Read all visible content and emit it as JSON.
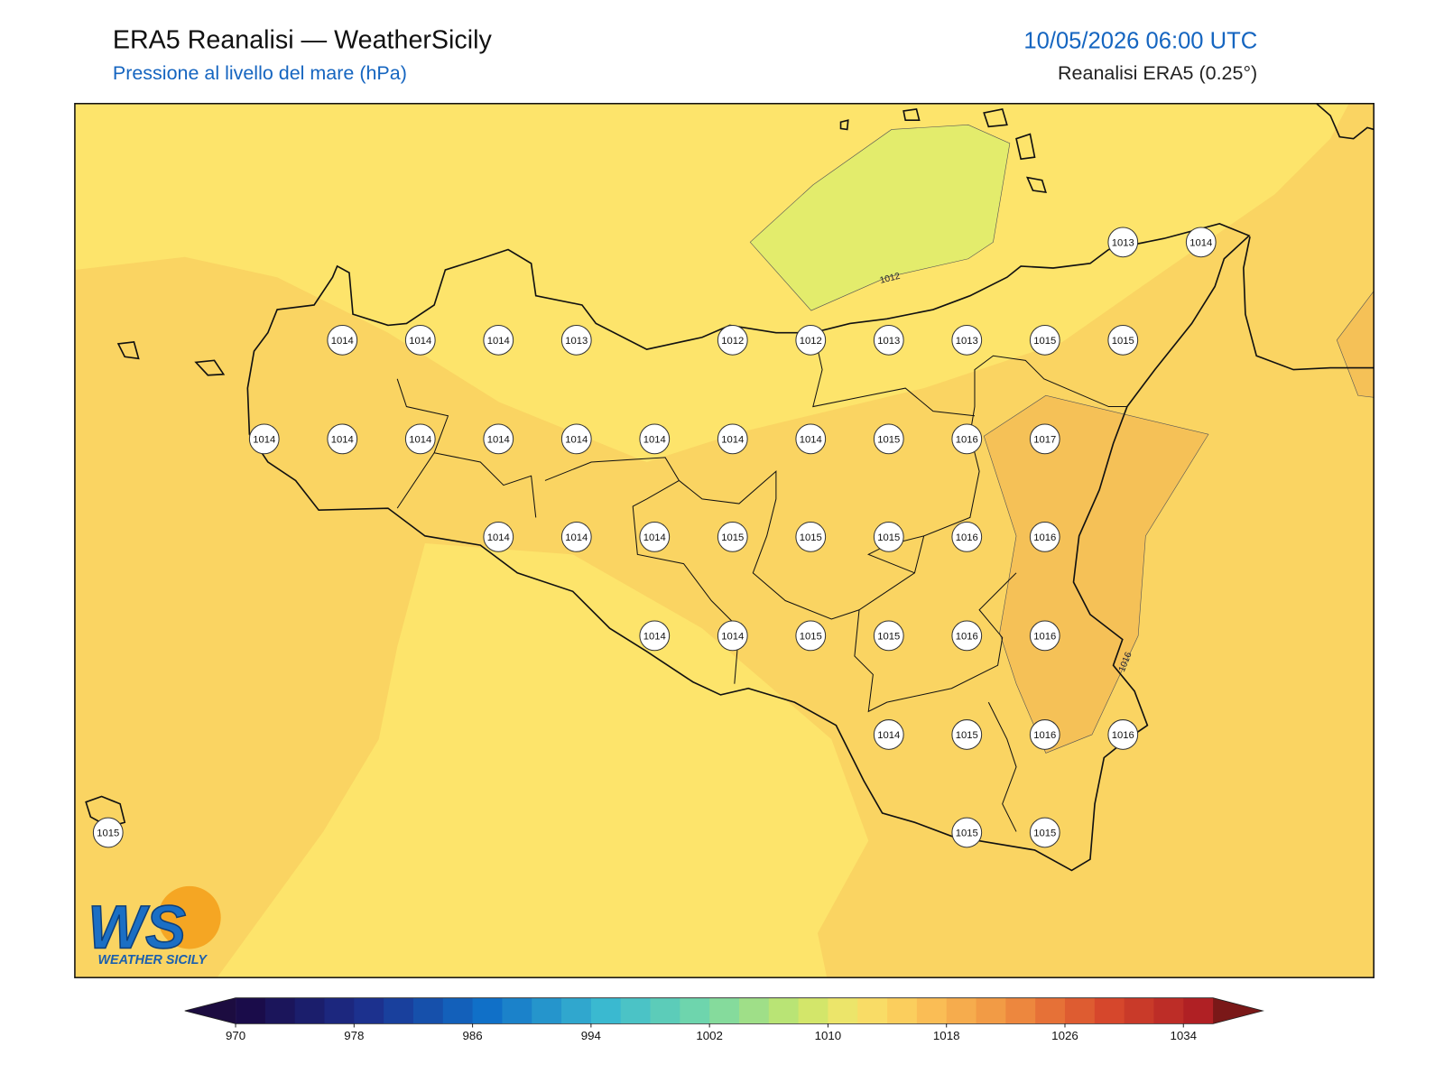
{
  "header": {
    "title": "ERA5 Reanalisi — WeatherSicily",
    "subtitle": "Pressione al livello del mare (hPa)",
    "datetime": "10/05/2026 06:00 UTC",
    "source": "Reanalisi ERA5 (0.25°)"
  },
  "map": {
    "stations": [
      [
        1013,
        1014
      ],
      [
        1014,
        1014,
        1014,
        1013,
        1012,
        1012,
        1013,
        1013,
        1015,
        1015
      ],
      [
        1014,
        1014,
        1014,
        1014,
        1014,
        1014,
        1014,
        1014,
        1015,
        1016,
        1017
      ],
      [
        1014,
        1014,
        1014,
        1015,
        1015,
        1015,
        1016,
        1016
      ],
      [
        1014,
        1014,
        1015,
        1015,
        1016,
        1016
      ],
      [
        1014,
        1015,
        1016,
        1016
      ],
      [
        1015,
        1015,
        1015
      ]
    ],
    "contour_labels": [
      "1012",
      "1016"
    ]
  },
  "colorbar": {
    "ticks": [
      970,
      978,
      986,
      994,
      1002,
      1010,
      1018,
      1026,
      1034
    ]
  },
  "logo": {
    "letters": "WS",
    "name": "WEATHER SICILY"
  }
}
